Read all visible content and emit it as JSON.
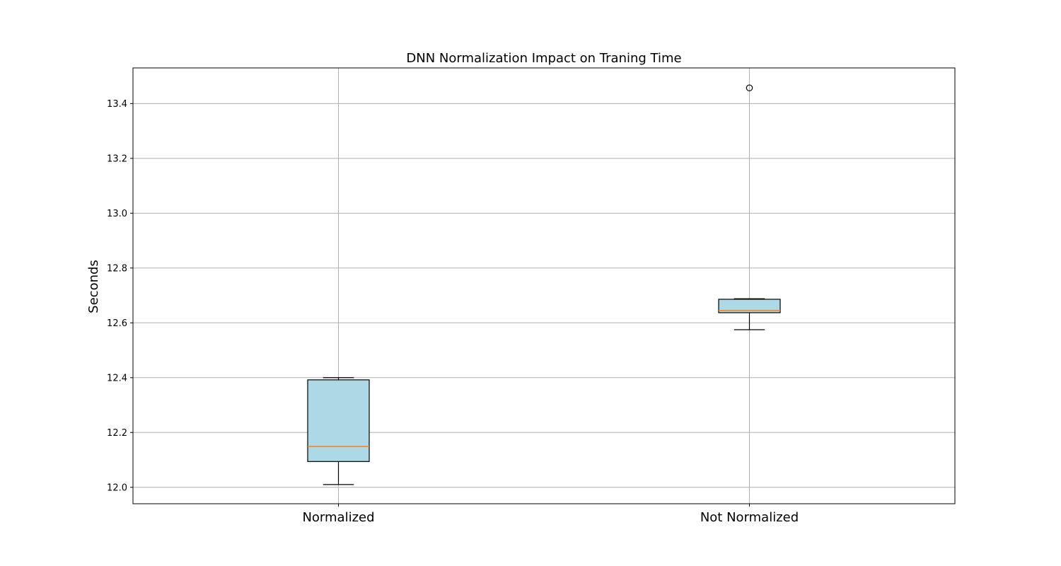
{
  "chart_data": {
    "type": "box",
    "title": "DNN Normalization Impact on Traning Time",
    "xlabel": "",
    "ylabel": "Seconds",
    "categories": [
      "Normalized",
      "Not Normalized"
    ],
    "boxes": [
      {
        "label": "Normalized",
        "whisker_low": 12.01,
        "q1": 12.094,
        "median": 12.149,
        "q3": 12.392,
        "whisker_high": 12.4,
        "outliers": []
      },
      {
        "label": "Not Normalized",
        "whisker_low": 12.575,
        "q1": 12.637,
        "median": 12.645,
        "q3": 12.686,
        "whisker_high": 12.688,
        "outliers": [
          13.457
        ]
      }
    ],
    "ylim": [
      11.94,
      13.53
    ],
    "yticks": [
      12.0,
      12.2,
      12.4,
      12.6,
      12.8,
      13.0,
      13.2,
      13.4
    ],
    "ytick_labels": [
      "12.0",
      "12.2",
      "12.4",
      "12.6",
      "12.8",
      "13.0",
      "13.2",
      "13.4"
    ],
    "grid": true,
    "colors": {
      "box_fill": "#add8e6",
      "median": "#ff7f0e",
      "edge": "#000000",
      "grid": "#b0b0b0"
    }
  }
}
